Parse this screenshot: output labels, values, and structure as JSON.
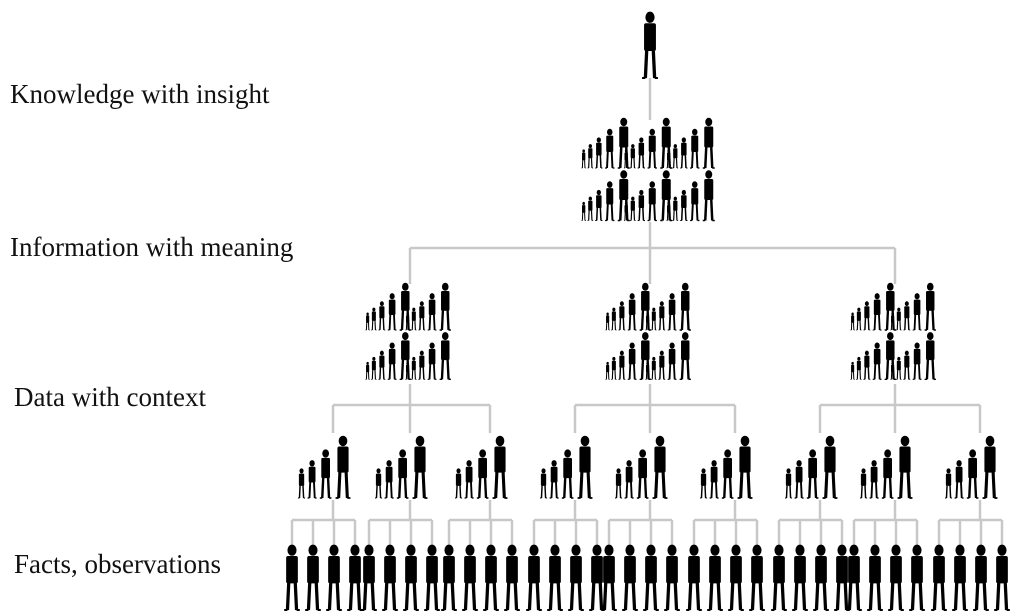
{
  "levels": [
    "Knowledge with insight",
    "Information with meaning",
    "Data with context",
    "Facts, observations"
  ]
}
